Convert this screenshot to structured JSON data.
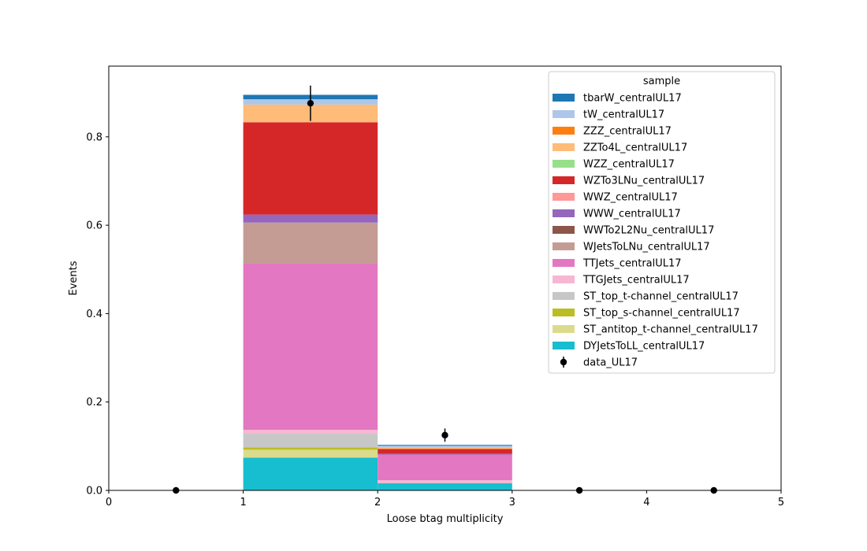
{
  "chart_data": {
    "type": "bar",
    "stacked": true,
    "xlabel": "Loose btag multiplicity",
    "ylabel": "Events",
    "xlim": [
      0,
      5
    ],
    "ylim": [
      0,
      0.96
    ],
    "x_ticks": [
      0,
      1,
      2,
      3,
      4,
      5
    ],
    "y_ticks": [
      0.0,
      0.2,
      0.4,
      0.6,
      0.8
    ],
    "bin_edges": [
      0,
      1,
      2,
      3,
      4,
      5
    ],
    "legend": {
      "title": "sample",
      "position": "top-right"
    },
    "grid": false,
    "series": [
      {
        "name": "DYJetsToLL_centralUL17",
        "color": "#17becf",
        "values": [
          0,
          0.074,
          0.016,
          0,
          0
        ]
      },
      {
        "name": "ST_antitop_t-channel_centralUL17",
        "color": "#dbdb8d",
        "values": [
          0,
          0.018,
          0.0,
          0,
          0
        ]
      },
      {
        "name": "ST_top_s-channel_centralUL17",
        "color": "#bcbd22",
        "values": [
          0,
          0.005,
          0.0,
          0,
          0
        ]
      },
      {
        "name": "ST_top_t-channel_centralUL17",
        "color": "#c7c7c7",
        "values": [
          0,
          0.032,
          0.001,
          0,
          0
        ]
      },
      {
        "name": "TTGJets_centralUL17",
        "color": "#f7b6d2",
        "values": [
          0,
          0.008,
          0.006,
          0,
          0
        ]
      },
      {
        "name": "TTJets_centralUL17",
        "color": "#e377c2",
        "values": [
          0,
          0.377,
          0.058,
          0,
          0
        ]
      },
      {
        "name": "WJetsToLNu_centralUL17",
        "color": "#c49c94",
        "values": [
          0,
          0.092,
          0.0,
          0,
          0
        ]
      },
      {
        "name": "WWTo2L2Nu_centralUL17",
        "color": "#8c564b",
        "values": [
          0,
          0.0,
          0.0,
          0,
          0
        ]
      },
      {
        "name": "WWW_centralUL17",
        "color": "#9467bd",
        "values": [
          0,
          0.018,
          0.002,
          0,
          0
        ]
      },
      {
        "name": "WWZ_centralUL17",
        "color": "#ff9896",
        "values": [
          0,
          0.0,
          0.0,
          0,
          0
        ]
      },
      {
        "name": "WZTo3LNu_centralUL17",
        "color": "#d62728",
        "values": [
          0,
          0.209,
          0.011,
          0,
          0
        ]
      },
      {
        "name": "WZZ_centralUL17",
        "color": "#98df8a",
        "values": [
          0,
          0.0,
          0.0,
          0,
          0
        ]
      },
      {
        "name": "ZZTo4L_centralUL17",
        "color": "#ffbb78",
        "values": [
          0,
          0.04,
          0.003,
          0,
          0
        ]
      },
      {
        "name": "ZZZ_centralUL17",
        "color": "#ff7f0e",
        "values": [
          0,
          0.0,
          0.0,
          0,
          0
        ]
      },
      {
        "name": "tW_centralUL17",
        "color": "#aec7e8",
        "values": [
          0,
          0.012,
          0.004,
          0,
          0
        ]
      },
      {
        "name": "tbarW_centralUL17",
        "color": "#1f77b4",
        "values": [
          0,
          0.01,
          0.002,
          0,
          0
        ]
      }
    ],
    "data_points": {
      "name": "data_UL17",
      "color": "#000000",
      "x": [
        0.5,
        1.5,
        2.5,
        3.5,
        4.5
      ],
      "y": [
        0.0,
        0.876,
        0.125,
        0.0,
        0.0
      ],
      "yerr": [
        0.0,
        0.04,
        0.015,
        0.0,
        0.0
      ]
    }
  }
}
